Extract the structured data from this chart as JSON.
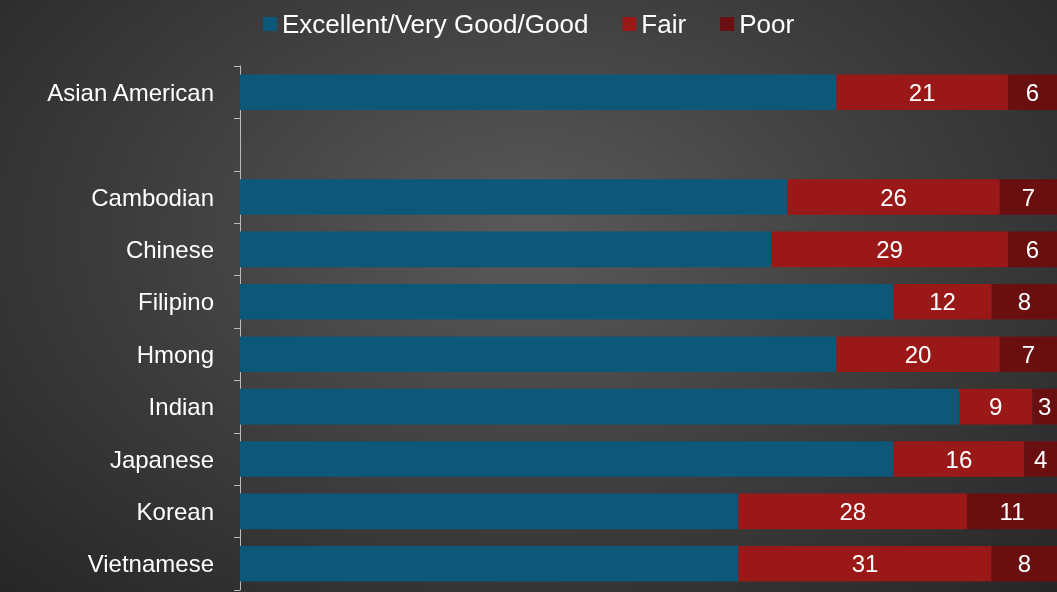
{
  "chart_data": {
    "type": "bar",
    "orientation": "horizontal",
    "stacked": true,
    "legend": "top",
    "categories": [
      "Asian American",
      null,
      "Cambodian",
      "Chinese",
      "Filipino",
      "Hmong",
      "Indian",
      "Japanese",
      "Korean",
      "Vietnamese"
    ],
    "series": [
      {
        "name": "Excellent/Very Good/Good",
        "color": "#0d5779",
        "values": [
          73,
          null,
          67,
          65,
          80,
          73,
          88,
          80,
          61,
          61
        ]
      },
      {
        "name": "Fair",
        "color": "#9a1818",
        "values": [
          21,
          null,
          26,
          29,
          12,
          20,
          9,
          16,
          28,
          31
        ],
        "value_labels": [
          "21",
          null,
          "26",
          "29",
          "12",
          "20",
          "9",
          "16",
          "28",
          "31"
        ]
      },
      {
        "name": "Poor",
        "color": "#6a0f10",
        "values": [
          6,
          null,
          7,
          6,
          8,
          7,
          3,
          4,
          11,
          8
        ],
        "value_labels": [
          "6",
          null,
          "7",
          "6",
          "8",
          "7",
          "3",
          "4",
          "11",
          "8"
        ]
      }
    ]
  }
}
